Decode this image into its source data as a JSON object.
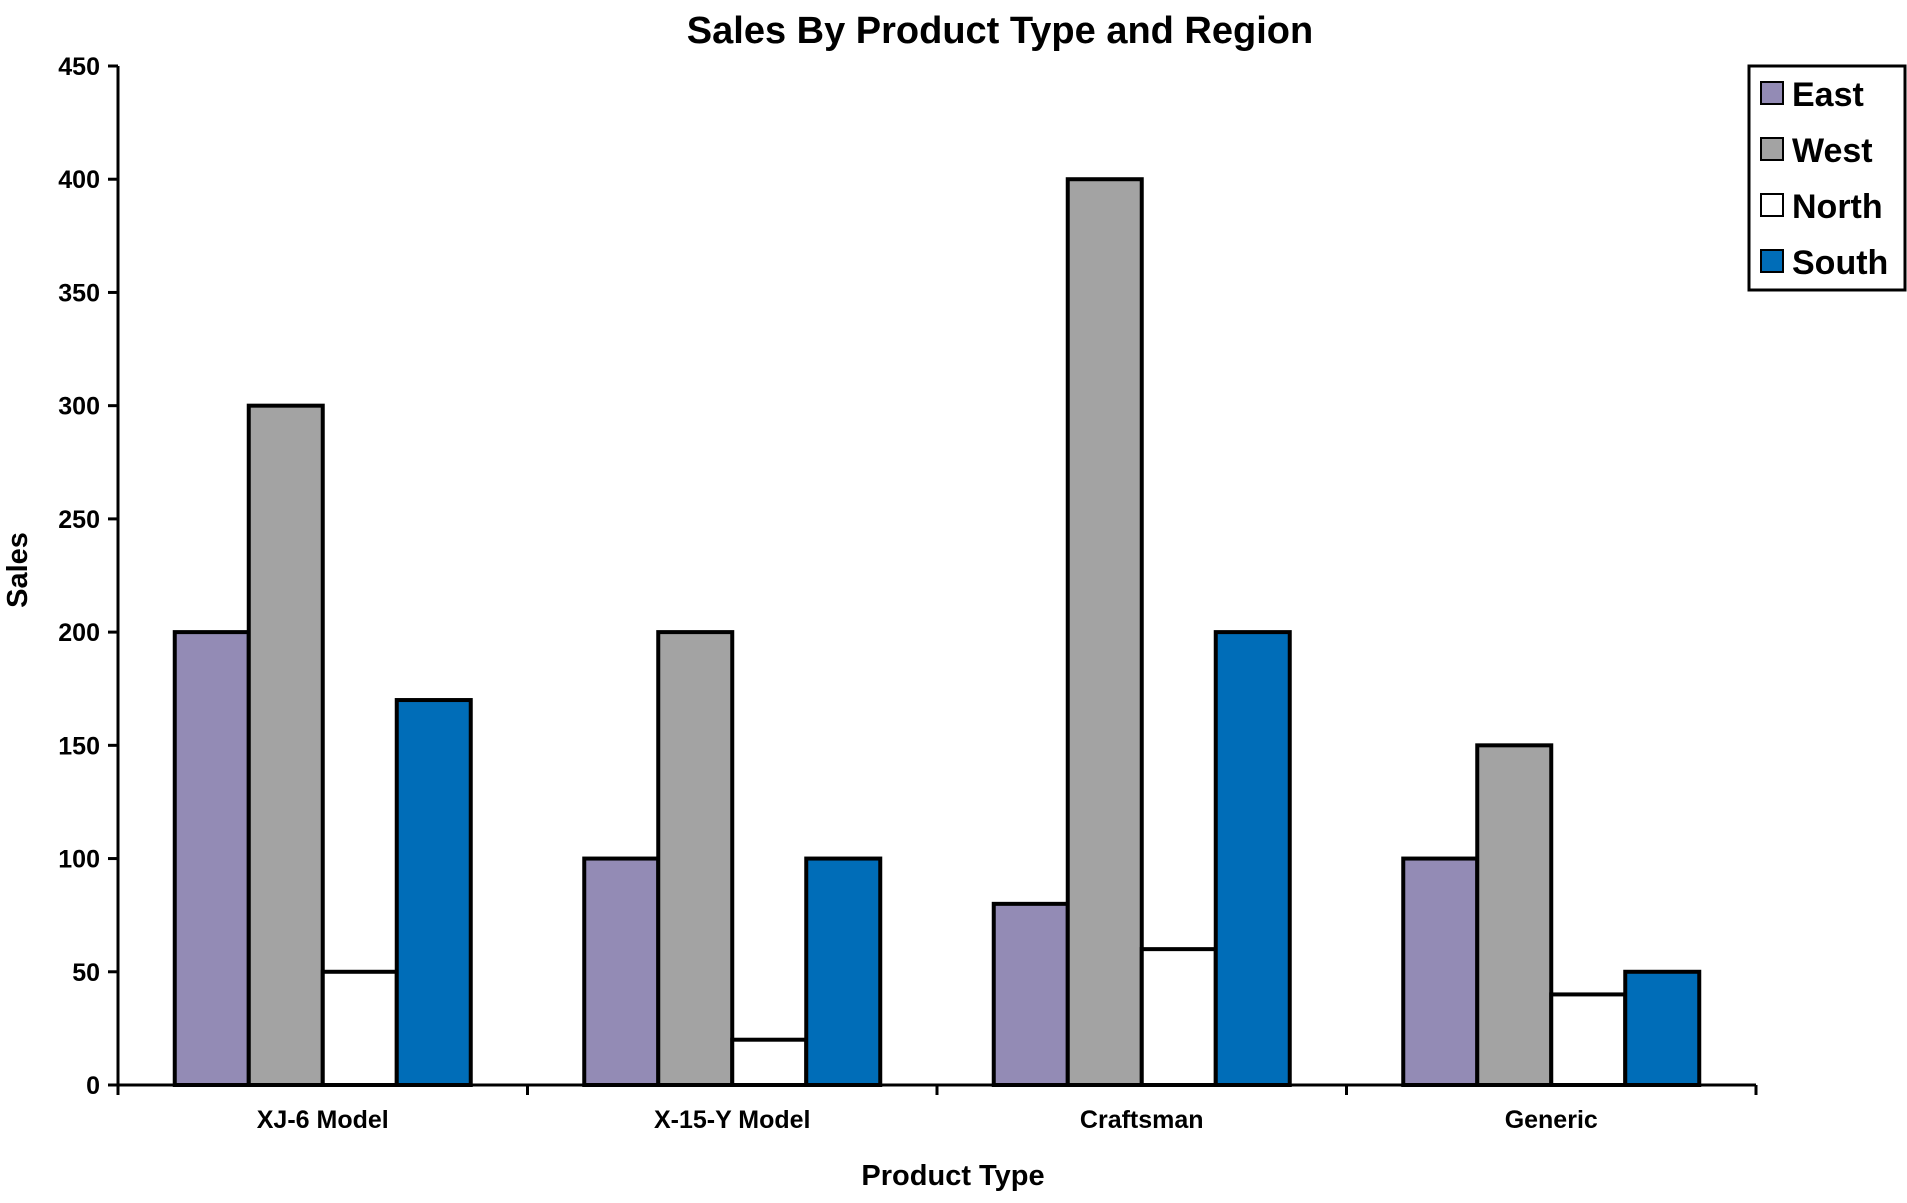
{
  "chart_data": {
    "type": "bar",
    "title": "Sales By Product Type and Region",
    "xlabel": "Product Type",
    "ylabel": "Sales",
    "categories": [
      "XJ-6 Model",
      "X-15-Y Model",
      "Craftsman",
      "Generic"
    ],
    "series": [
      {
        "name": "East",
        "color": "#938BB5",
        "values": [
          200,
          100,
          80,
          100
        ]
      },
      {
        "name": "West",
        "color": "#A3A3A3",
        "values": [
          300,
          200,
          400,
          150
        ]
      },
      {
        "name": "North",
        "color": "#FFFFFF",
        "values": [
          50,
          20,
          60,
          40
        ]
      },
      {
        "name": "South",
        "color": "#006DB8",
        "values": [
          170,
          100,
          200,
          50
        ]
      }
    ],
    "ylim": [
      0,
      450
    ],
    "yticks": [
      "0",
      "50",
      "100",
      "150",
      "200",
      "250",
      "300",
      "350",
      "400",
      "450"
    ],
    "grid": false,
    "legend_position": "top-right"
  }
}
